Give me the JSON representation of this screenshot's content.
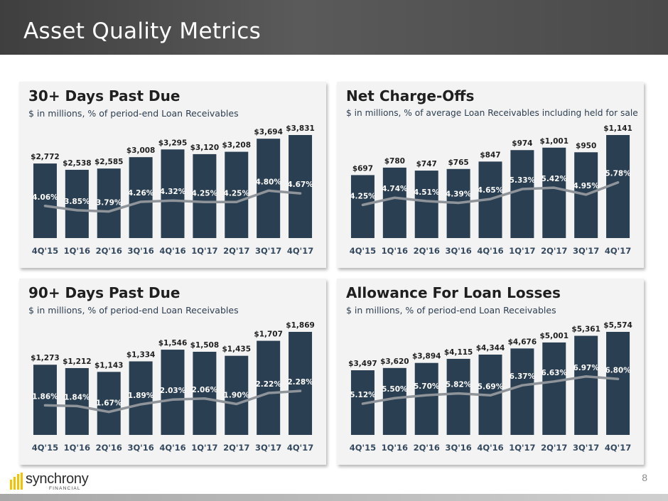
{
  "page": {
    "title": "Asset Quality Metrics",
    "page_number": "8",
    "logo": {
      "name": "synchrony",
      "sub": "FINANCIAL",
      "icon": "synchrony-logo-icon",
      "accent": "#f6c200"
    }
  },
  "colors": {
    "bar": "#2b3f52",
    "line": "#8e9499",
    "tick": "#34495e",
    "panel_bg": "#f3f3f3"
  },
  "chart_data": [
    {
      "id": "dpd30",
      "type": "bar",
      "title": "30+ Days Past Due",
      "subtitle": "$ in millions, % of period-end Loan Receivables",
      "categories": [
        "4Q'15",
        "1Q'16",
        "2Q'16",
        "3Q'16",
        "4Q'16",
        "1Q'17",
        "2Q'17",
        "3Q'17",
        "4Q'17"
      ],
      "values": [
        2772,
        2538,
        2585,
        3008,
        3295,
        3120,
        3208,
        3694,
        3831
      ],
      "value_labels": [
        "$2,772",
        "$2,538",
        "$2,585",
        "$3,008",
        "$3,295",
        "$3,120",
        "$3,208",
        "$3,694",
        "$3,831"
      ],
      "rates": [
        4.06,
        3.85,
        3.79,
        4.26,
        4.32,
        4.25,
        4.25,
        4.8,
        4.67
      ],
      "rate_labels": [
        "4.06%",
        "3.85%",
        "3.79%",
        "4.26%",
        "4.32%",
        "4.25%",
        "4.25%",
        "4.80%",
        "4.67%"
      ],
      "ylim": [
        0,
        3831
      ],
      "rate_range": [
        2.5,
        7.5
      ]
    },
    {
      "id": "nco",
      "type": "bar",
      "title": "Net Charge-Offs",
      "subtitle": "$ in millions, % of average Loan Receivables including held for sale",
      "categories": [
        "4Q'15",
        "1Q'16",
        "2Q'16",
        "3Q'16",
        "4Q'16",
        "1Q'17",
        "2Q'17",
        "3Q'17",
        "4Q'17"
      ],
      "values": [
        697,
        780,
        747,
        765,
        847,
        974,
        1001,
        950,
        1141
      ],
      "value_labels": [
        "$697",
        "$780",
        "$747",
        "$765",
        "$847",
        "$974",
        "$1,001",
        "$950",
        "$1,141"
      ],
      "rates": [
        4.25,
        4.74,
        4.51,
        4.39,
        4.65,
        5.33,
        5.42,
        4.95,
        5.78
      ],
      "rate_labels": [
        "4.25%",
        "4.74%",
        "4.51%",
        "4.39%",
        "4.65%",
        "5.33%",
        "5.42%",
        "4.95%",
        "5.78%"
      ],
      "ylim": [
        0,
        1141
      ],
      "rate_range": [
        2.0,
        9.0
      ]
    },
    {
      "id": "dpd90",
      "type": "bar",
      "title": "90+ Days Past Due",
      "subtitle": "$ in millions, % of period-end Loan Receivables",
      "categories": [
        "4Q'15",
        "1Q'16",
        "2Q'16",
        "3Q'16",
        "4Q'16",
        "1Q'17",
        "2Q'17",
        "3Q'17",
        "4Q'17"
      ],
      "values": [
        1273,
        1212,
        1143,
        1334,
        1546,
        1508,
        1435,
        1707,
        1869
      ],
      "value_labels": [
        "$1,273",
        "$1,212",
        "$1,143",
        "$1,334",
        "$1,546",
        "$1,508",
        "$1,435",
        "$1,707",
        "$1,869"
      ],
      "rates": [
        1.86,
        1.84,
        1.67,
        1.89,
        2.03,
        2.06,
        1.9,
        2.22,
        2.28
      ],
      "rate_labels": [
        "1.86%",
        "1.84%",
        "1.67%",
        "1.89%",
        "2.03%",
        "2.06%",
        "1.90%",
        "2.22%",
        "2.28%"
      ],
      "ylim": [
        0,
        1869
      ],
      "rate_range": [
        1.0,
        4.0
      ]
    },
    {
      "id": "alll",
      "type": "bar",
      "title": "Allowance For Loan Losses",
      "subtitle": "$ in millions, % of period-end Loan Receivables",
      "categories": [
        "4Q'15",
        "1Q'16",
        "2Q'16",
        "3Q'16",
        "4Q'16",
        "1Q'17",
        "2Q'17",
        "3Q'17",
        "4Q'17"
      ],
      "values": [
        3497,
        3620,
        3894,
        4115,
        4344,
        4676,
        5001,
        5361,
        5574
      ],
      "value_labels": [
        "$3,497",
        "$3,620",
        "$3,894",
        "$4,115",
        "$4,344",
        "$4,676",
        "$5,001",
        "$5,361",
        "$5,574"
      ],
      "rates": [
        5.12,
        5.5,
        5.7,
        5.82,
        5.69,
        6.37,
        6.63,
        6.97,
        6.8
      ],
      "rate_labels": [
        "5.12%",
        "5.50%",
        "5.70%",
        "5.82%",
        "5.69%",
        "6.37%",
        "6.63%",
        "6.97%",
        "6.80%"
      ],
      "ylim": [
        0,
        5574
      ],
      "rate_range": [
        3.0,
        10.0
      ]
    }
  ]
}
